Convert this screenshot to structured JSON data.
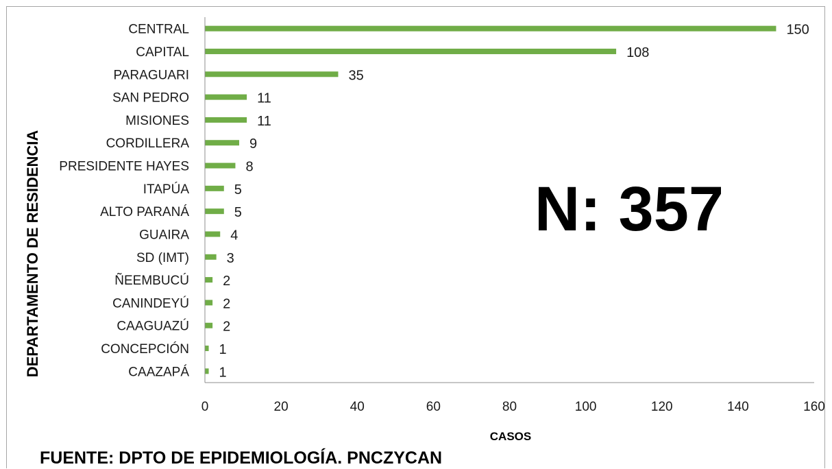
{
  "chart_data": {
    "type": "bar",
    "orientation": "horizontal",
    "categories": [
      "CENTRAL",
      "CAPITAL",
      "PARAGUARI",
      "SAN PEDRO",
      "MISIONES",
      "CORDILLERA",
      "PRESIDENTE HAYES",
      "ITAPÚA",
      "ALTO PARANÁ",
      "GUAIRA",
      "SD (IMT)",
      "ÑEEMBUCÚ",
      "CANINDEYÚ",
      "CAAGUAZÚ",
      "CONCEPCIÓN",
      "CAAZAPÁ"
    ],
    "values": [
      150,
      108,
      35,
      11,
      11,
      9,
      8,
      5,
      5,
      4,
      3,
      2,
      2,
      2,
      1,
      1
    ],
    "xlabel": "CASOS",
    "ylabel": "DEPARTAMENTO DE RESIDENCIA",
    "xlim": [
      0,
      160
    ],
    "xticks": [
      0,
      20,
      40,
      60,
      80,
      100,
      120,
      140,
      160
    ],
    "bar_color": "#70ad47",
    "grid": false,
    "annotation": "N: 357",
    "source": "FUENTE: DPTO DE EPIDEMIOLOGÍA.  PNCZYCAN"
  }
}
